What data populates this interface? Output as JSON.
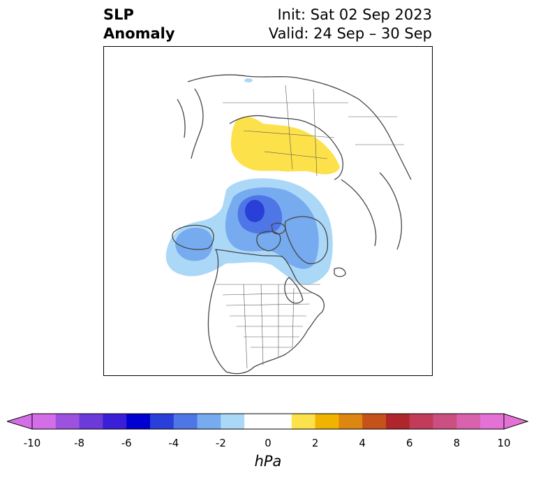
{
  "title": {
    "left_line1": "SLP",
    "left_line2": "Anomaly",
    "right_line1": "Init: Sat 02 Sep 2023",
    "right_line2": "Valid: 24 Sep – 30 Sep"
  },
  "colorbar": {
    "unit_label": "hPa",
    "range": [
      -10,
      10
    ],
    "step": 1,
    "extend": "both",
    "tick_labels": [
      "-10",
      "-8",
      "-6",
      "-4",
      "-2",
      "0",
      "2",
      "4",
      "6",
      "8",
      "10"
    ],
    "colors": [
      "#d46ee8",
      "#9d52df",
      "#6b3ad9",
      "#3a1fd6",
      "#0000d0",
      "#2a3fd8",
      "#4f76e6",
      "#77abef",
      "#acd8f8",
      "#ffffff",
      "#ffffff",
      "#fde14a",
      "#f0b400",
      "#de8612",
      "#c4521a",
      "#b0252a",
      "#c23c5a",
      "#cc4f82",
      "#d962ac",
      "#e472d6"
    ],
    "extend_low_color": "#d46ee8",
    "extend_high_color": "#e472d6"
  },
  "map": {
    "projection": "north-polar-stereographic",
    "region": "North America / Arctic",
    "anomalies": [
      {
        "name": "positive-anomaly-siberia",
        "level_hpa": 1,
        "color": "#fde14a"
      },
      {
        "name": "negative-anomaly-arctic-outer",
        "level_hpa": -1,
        "color": "#acd8f8"
      },
      {
        "name": "negative-anomaly-arctic-mid",
        "level_hpa": -2,
        "color": "#77abef"
      },
      {
        "name": "negative-anomaly-arctic-inner",
        "level_hpa": -3,
        "color": "#4f76e6"
      },
      {
        "name": "negative-anomaly-arctic-core",
        "level_hpa": -4,
        "color": "#2a3fd8"
      }
    ],
    "coastline_color": "#444444"
  }
}
